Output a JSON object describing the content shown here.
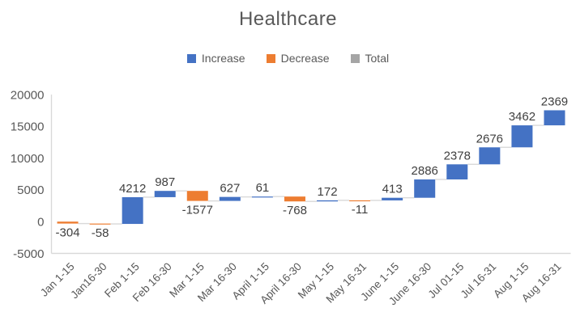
{
  "title": "Healthcare",
  "legend": {
    "items": [
      {
        "id": "increase",
        "label": "Increase",
        "color": "#4472C4"
      },
      {
        "id": "decrease",
        "label": "Decrease",
        "color": "#ED7D31"
      },
      {
        "id": "total",
        "label": "Total",
        "color": "#A5A5A5"
      }
    ]
  },
  "chart_data": {
    "type": "bar",
    "subtype": "waterfall",
    "title": "Healthcare",
    "categories": [
      "Jan 1-15",
      "Jan16-30",
      "Feb 1-15",
      "Feb 16-30",
      "Mar 1-15",
      "Mar 16-30",
      "April 1-15",
      "April 16-30",
      "May 1-15",
      "May 16-31",
      "June 1-15",
      "June 16-30",
      "Jul 01-15",
      "Jul 16-31",
      "Aug 1-15",
      "Aug 16-31"
    ],
    "values": [
      -304,
      -58,
      4212,
      987,
      -1577,
      627,
      61,
      -768,
      172,
      -11,
      413,
      2886,
      2378,
      2676,
      3462,
      2369
    ],
    "data_labels": [
      "-304",
      "-58",
      "4212",
      "987",
      "-1577",
      "627",
      "61",
      "-768",
      "172",
      "-11",
      "413",
      "2886",
      "2378",
      "2676",
      "3462",
      "2369"
    ],
    "legend_entries": [
      "Increase",
      "Decrease",
      "Total"
    ],
    "increase_color": "#4472C4",
    "decrease_color": "#ED7D31",
    "total_color": "#A5A5A5",
    "ylim": [
      -5000,
      20000
    ],
    "yticks": [
      20000,
      15000,
      10000,
      5000,
      0,
      -5000
    ],
    "ytick_labels": [
      "20000",
      "15000",
      "10000",
      "5000",
      "0",
      "-5000"
    ],
    "grid": false,
    "legend_position": "top",
    "axis_line_color": "#D9D9D9",
    "connector_color": "#D9D9D9",
    "axis_text_color": "#595959",
    "data_label_color": "#404040",
    "title_color": "#595959"
  }
}
